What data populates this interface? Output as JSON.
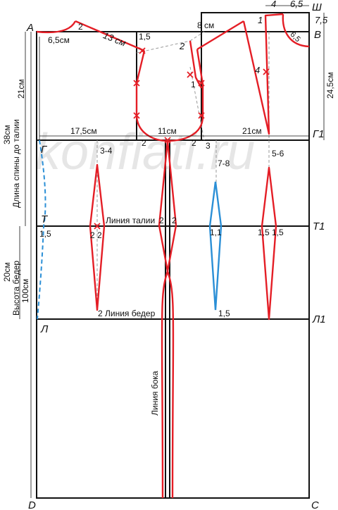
{
  "points": {
    "A": "А",
    "B": "В",
    "Sh": "Ш",
    "G": "Г",
    "G1": "Г1",
    "T": "Т",
    "T1": "Т1",
    "L": "Л",
    "L1": "Л1",
    "D": "D",
    "C": "С"
  },
  "dimensions": {
    "top_4": "4",
    "top_6_5": "6,5",
    "top_7_5": "7,5",
    "neck_6_5": "6,5",
    "neck_width": "6,5см",
    "shoulder": "13 см",
    "back_width": "17,5см",
    "armhole_width": "11см",
    "front_width": "21см",
    "front_height": "24,5см",
    "dart_8cm": "8 см",
    "back_height": "21см",
    "back_waist_length": "38см",
    "hip_height": "20см",
    "total_length": "100см"
  },
  "vertical_labels": {
    "back_waist": "Длина спины до талии",
    "hip_height": "Высота бедер",
    "side_line": "Линия бока"
  },
  "line_labels": {
    "waist": "Линия талии",
    "hips": "Линия  бедер"
  },
  "marks": {
    "m2_neck": "2",
    "m1_5_arm": "1,5",
    "m2_front": "2",
    "m1_front": "1",
    "m1_neck": "1",
    "m4_front": "4",
    "m2_arm_l": "2",
    "m2_arm_r": "2",
    "m3": "3",
    "m3_4": "3-4",
    "m7_8": "7-8",
    "m5_6": "5-6",
    "m1_5_t": "1,5",
    "m2_2_back": "2 2",
    "m2_side_l": "2",
    "m2_side_r": "2",
    "m1_1": "1,1",
    "m1_5_front_l": "1,5",
    "m1_5_front_r": "1,5",
    "m2_hip": "2",
    "m1_5_hip": "1,5"
  },
  "watermark": "konfiati.ru",
  "colors": {
    "frame": "#111111",
    "pattern": "#e41e26",
    "dart_blue": "#2b8fd6",
    "guide": "#999999"
  }
}
